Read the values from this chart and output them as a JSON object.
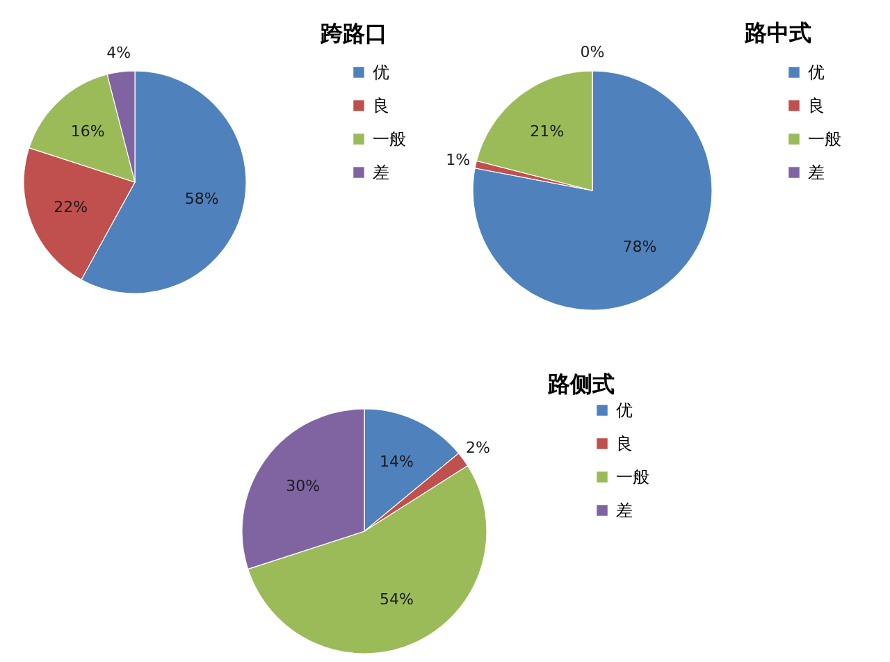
{
  "chart_data": [
    {
      "type": "pie",
      "title": "跨路口",
      "categories": [
        "优",
        "良",
        "一般",
        "差"
      ],
      "values": [
        58,
        22,
        16,
        4
      ],
      "colors": [
        "#4f81bd",
        "#c0504d",
        "#9bbb59",
        "#8064a2"
      ],
      "value_labels": [
        "58%",
        "22%",
        "16%",
        "4%"
      ],
      "legend": "right"
    },
    {
      "type": "pie",
      "title": "路中式",
      "categories": [
        "优",
        "良",
        "一般",
        "差"
      ],
      "values": [
        78,
        1,
        21,
        0
      ],
      "colors": [
        "#4f81bd",
        "#c0504d",
        "#9bbb59",
        "#8064a2"
      ],
      "value_labels": [
        "78%",
        "1%",
        "21%",
        "0%"
      ],
      "legend": "right"
    },
    {
      "type": "pie",
      "title": "路侧式",
      "categories": [
        "优",
        "良",
        "一般",
        "差"
      ],
      "values": [
        14,
        2,
        54,
        30
      ],
      "colors": [
        "#4f81bd",
        "#c0504d",
        "#9bbb59",
        "#8064a2"
      ],
      "value_labels": [
        "14%",
        "2%",
        "54%",
        "30%"
      ],
      "legend": "right"
    }
  ]
}
